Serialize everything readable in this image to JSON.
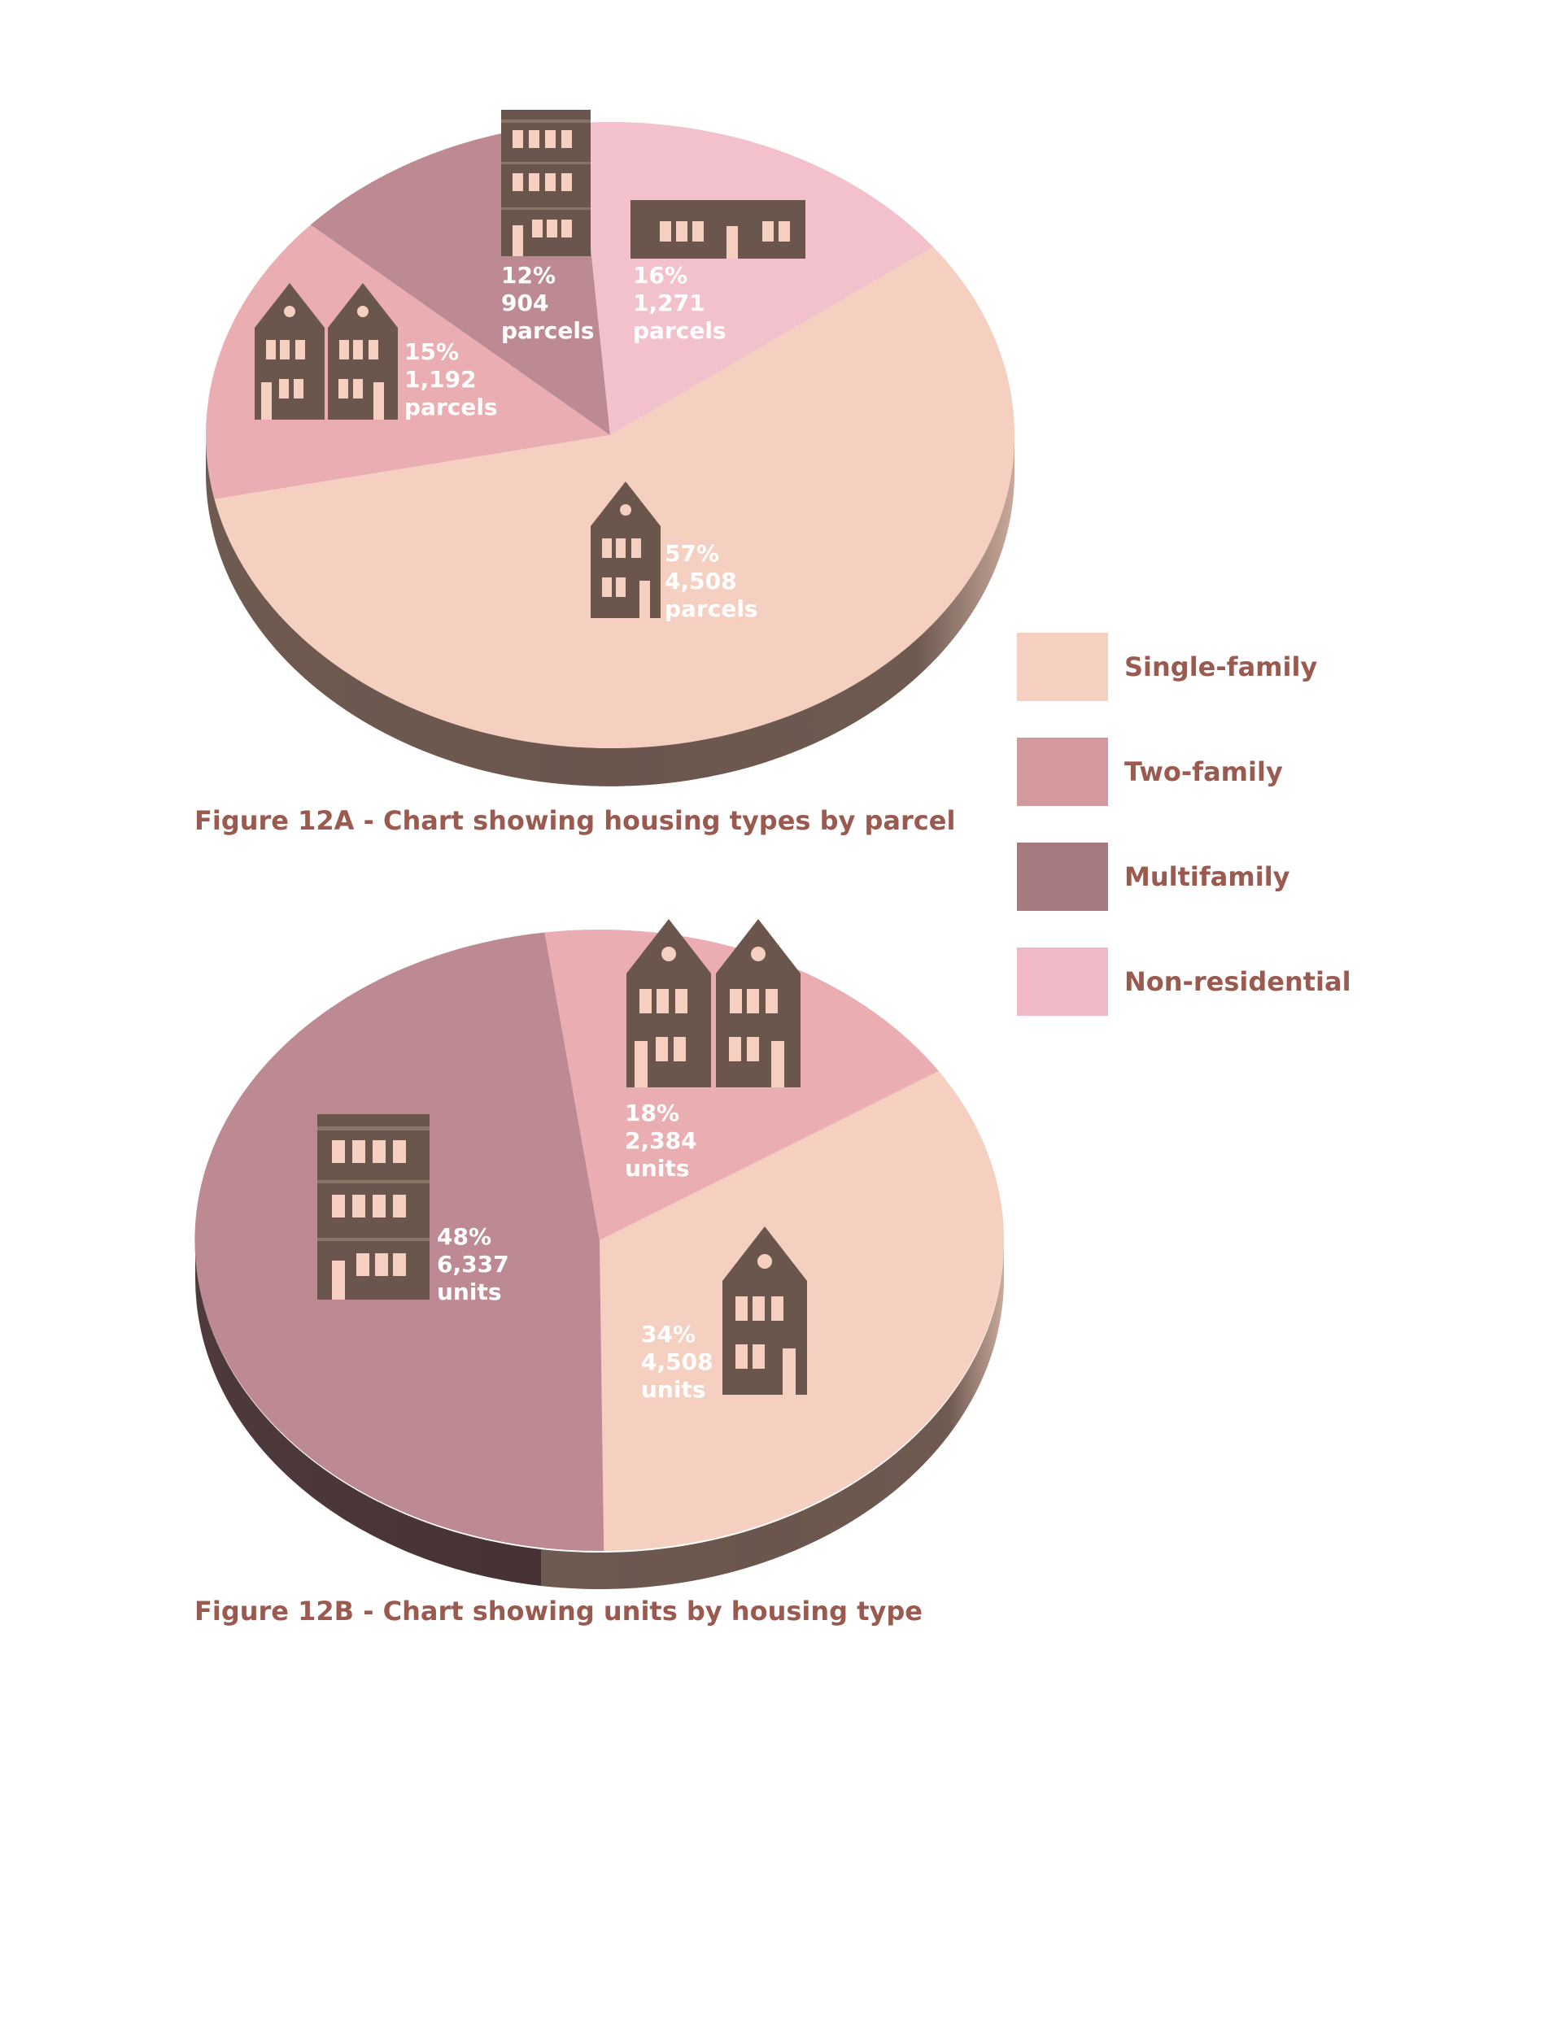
{
  "legend": [
    {
      "label": "Single-family",
      "color": "#f5cfc0"
    },
    {
      "label": "Two-family",
      "color": "#d4999c"
    },
    {
      "label": "Multifamily",
      "color": "#a57b7f"
    },
    {
      "label": "Non-residential",
      "color": "#efb9c6"
    }
  ],
  "chart_data": [
    {
      "type": "pie",
      "title": "Figure 12A - Chart showing housing types by parcel",
      "slices": [
        {
          "category": "Single-family",
          "percent": 57,
          "value": 4508,
          "line1": "57%",
          "line2": "4,508",
          "line3": "parcels",
          "color": "#f5cfc0",
          "icon": "single-family-house-icon"
        },
        {
          "category": "Two-family",
          "percent": 15,
          "value": 1192,
          "line1": "15%",
          "line2": "1,192",
          "line3": "parcels",
          "color": "#eaaeb2",
          "icon": "two-family-house-icon"
        },
        {
          "category": "Multifamily",
          "percent": 12,
          "value": 904,
          "line1": "12%",
          "line2": "904",
          "line3": "parcels",
          "color": "#bd8a93",
          "icon": "apartment-building-icon"
        },
        {
          "category": "Non-residential",
          "percent": 16,
          "value": 1271,
          "line1": "16%",
          "line2": "1,271",
          "line3": "parcels",
          "color": "#f2c1cc",
          "icon": "commercial-building-icon"
        }
      ]
    },
    {
      "type": "pie",
      "title": "Figure 12B - Chart showing units by housing type",
      "slices": [
        {
          "category": "Single-family",
          "percent": 34,
          "value": 4508,
          "line1": "34%",
          "line2": "4,508",
          "line3": "units",
          "color": "#f5cfc0",
          "icon": "single-family-house-icon"
        },
        {
          "category": "Multifamily",
          "percent": 48,
          "value": 6337,
          "line1": "48%",
          "line2": "6,337",
          "line3": "units",
          "color": "#bd8a93",
          "icon": "apartment-building-icon"
        },
        {
          "category": "Two-family",
          "percent": 18,
          "value": 2384,
          "line1": "18%",
          "line2": "2,384",
          "line3": "units",
          "color": "#eaaeb2",
          "icon": "two-family-house-icon"
        }
      ]
    }
  ]
}
